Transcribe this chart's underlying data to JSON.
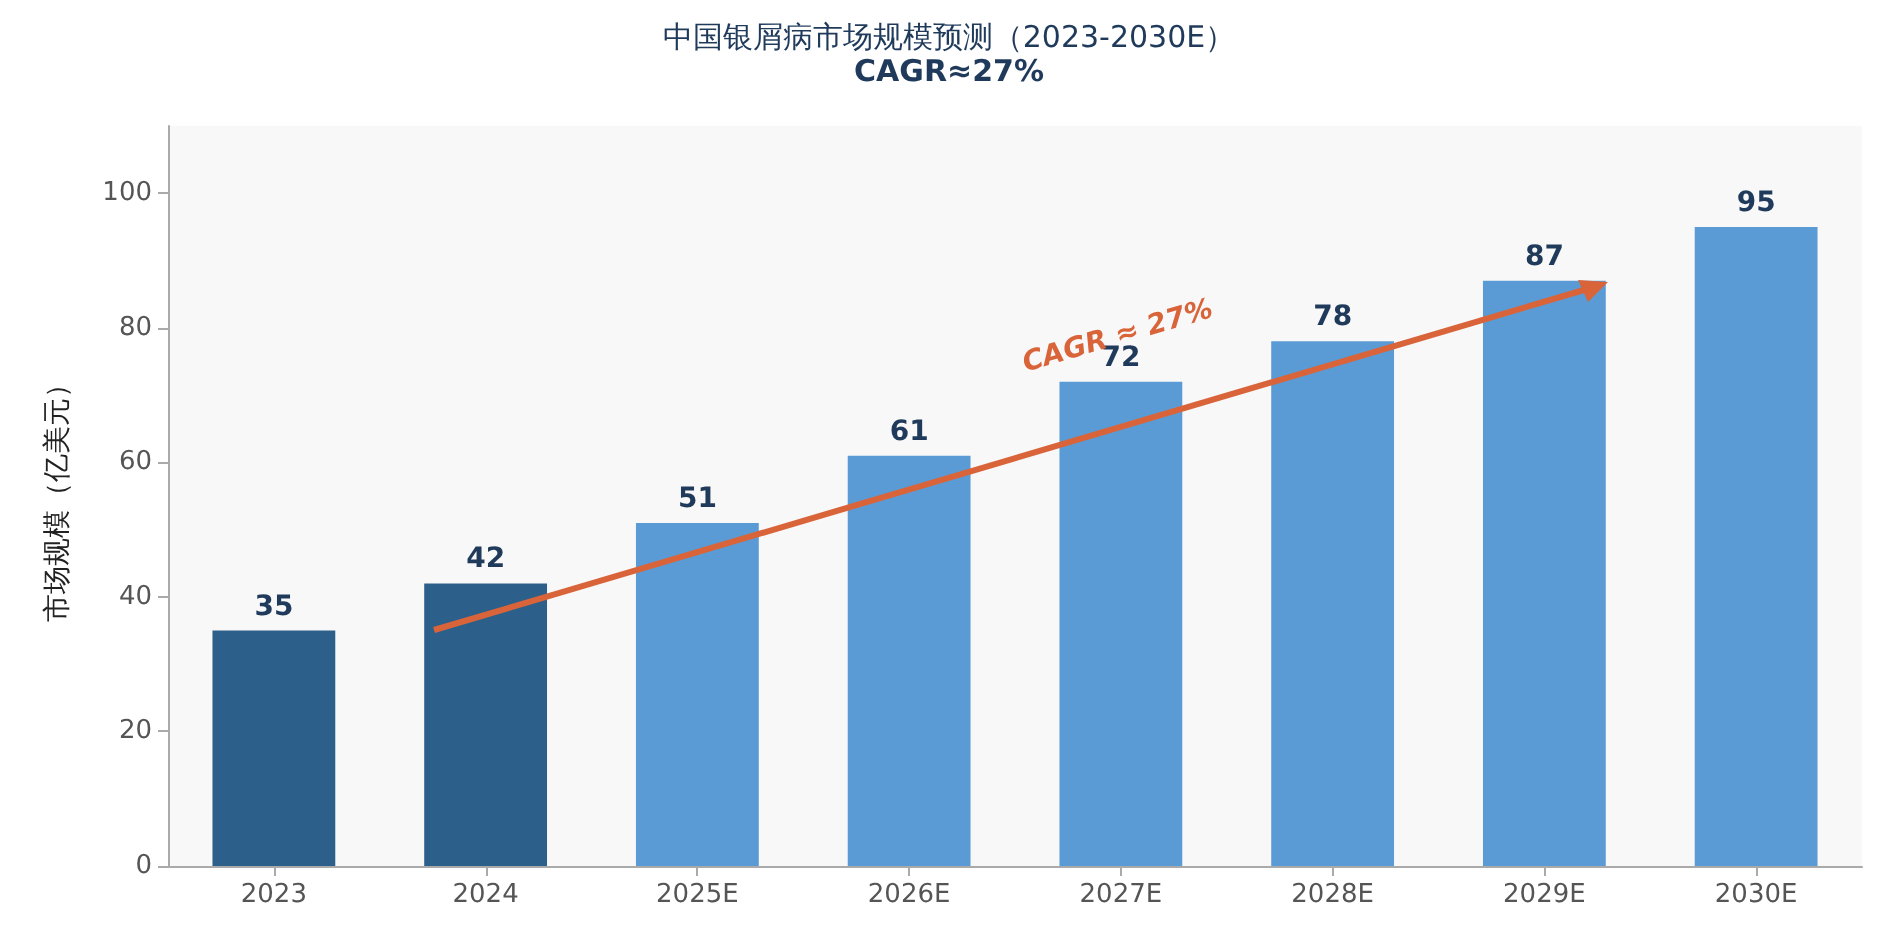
{
  "chart_data": {
    "type": "bar",
    "title": "中国银屑病市场规模预测（2023-2030E）",
    "subtitle": "CAGR≈27%",
    "ylabel": "市场规模（亿美元）",
    "categories": [
      "2023",
      "2024",
      "2025E",
      "2026E",
      "2027E",
      "2028E",
      "2029E",
      "2030E"
    ],
    "values": [
      35,
      42,
      51,
      61,
      72,
      78,
      87,
      95
    ],
    "colors": [
      "#2c5f8a",
      "#2c5f8a",
      "#5b9bd5",
      "#5b9bd5",
      "#5b9bd5",
      "#5b9bd5",
      "#5b9bd5",
      "#5b9bd5"
    ],
    "ylim": [
      0,
      110
    ],
    "yticks": [
      0,
      20,
      40,
      60,
      80,
      100
    ],
    "data_labels": true,
    "grid": false,
    "annotations": [
      "CAGR ≈ 27%"
    ]
  }
}
